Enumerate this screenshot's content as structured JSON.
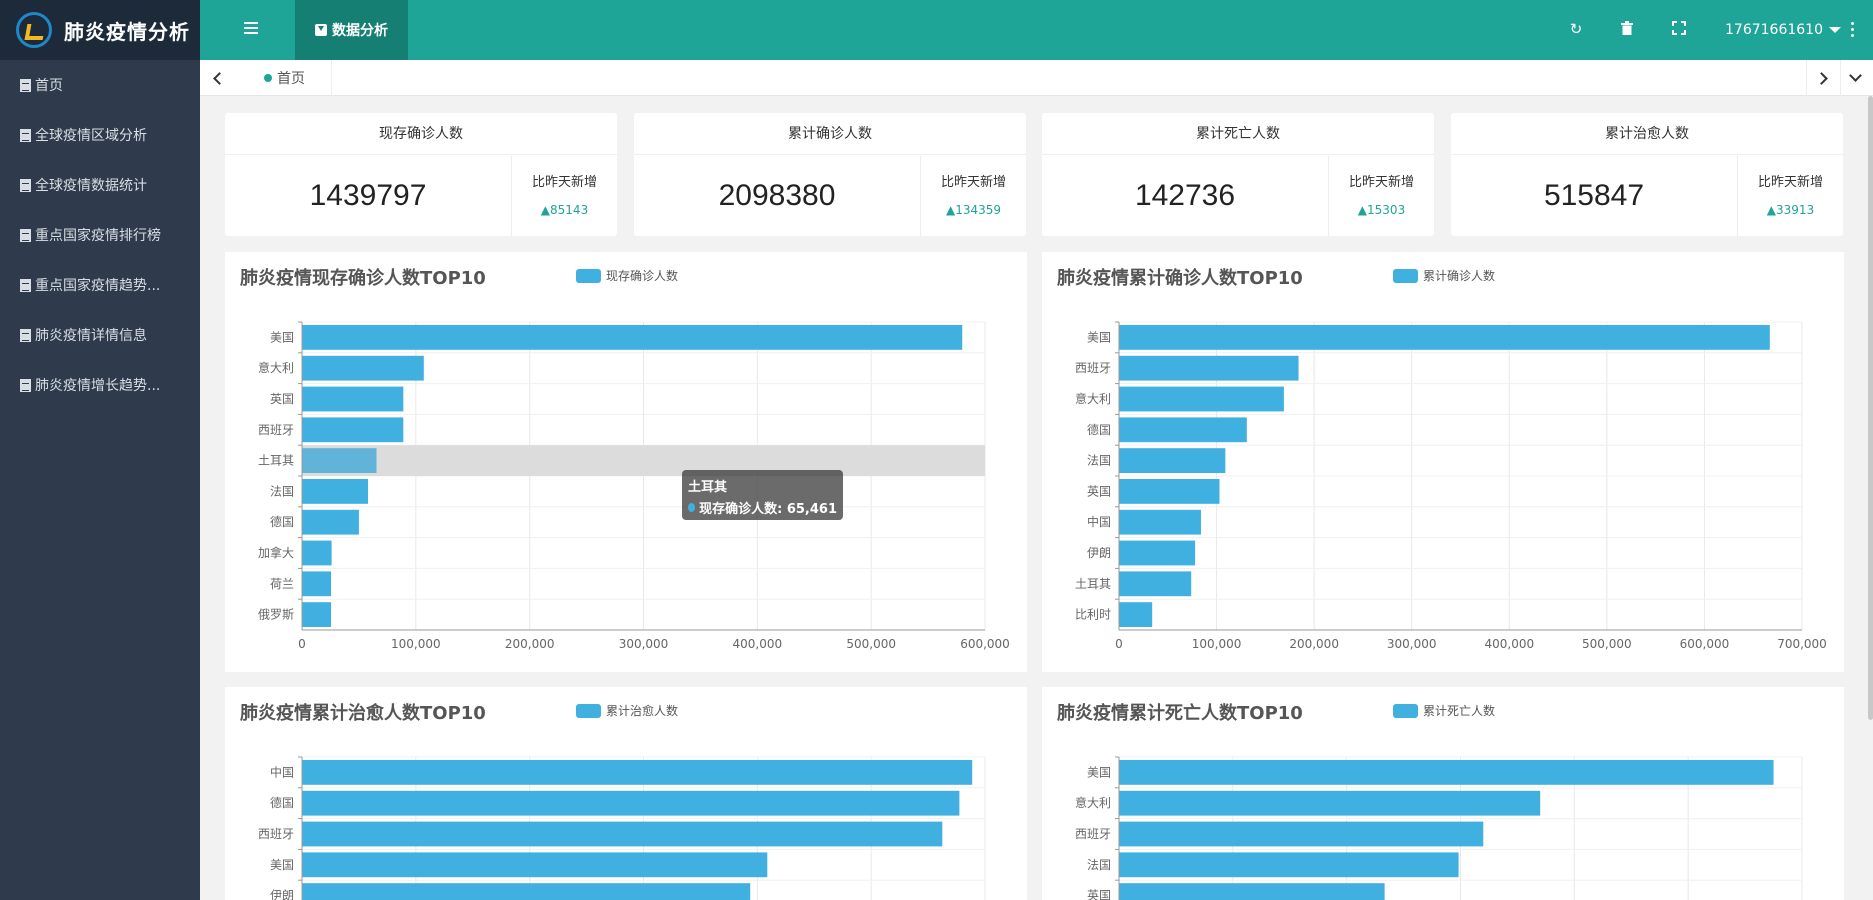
{
  "app": {
    "title": "肺炎疫情分析"
  },
  "sidebar": {
    "items": [
      {
        "label": "首页"
      },
      {
        "label": "全球疫情区域分析"
      },
      {
        "label": "全球疫情数据统计"
      },
      {
        "label": "重点国家疫情排行榜"
      },
      {
        "label": "重点国家疫情趋势..."
      },
      {
        "label": "肺炎疫情详情信息"
      },
      {
        "label": "肺炎疫情增长趋势..."
      }
    ]
  },
  "topbar": {
    "active_tab": "数据分析",
    "user": "17671661610"
  },
  "tabstrip": {
    "home_tab": "首页"
  },
  "stats": [
    {
      "title": "现存确诊人数",
      "value": "1439797",
      "compare_label": "比昨天新增",
      "delta": "▲85143"
    },
    {
      "title": "累计确诊人数",
      "value": "2098380",
      "compare_label": "比昨天新增",
      "delta": "▲134359"
    },
    {
      "title": "累计死亡人数",
      "value": "142736",
      "compare_label": "比昨天新增",
      "delta": "▲15303"
    },
    {
      "title": "累计治愈人数",
      "value": "515847",
      "compare_label": "比昨天新增",
      "delta": "▲33913"
    }
  ],
  "colors": {
    "bar": "#40b0e0",
    "accent": "#1fa597",
    "sidebar": "#2f3b4c"
  },
  "chart_data": [
    {
      "type": "bar",
      "orientation": "horizontal",
      "title": "肺炎疫情现存确诊人数TOP10",
      "series": [
        {
          "name": "现存确诊人数"
        }
      ],
      "categories": [
        "美国",
        "意大利",
        "英国",
        "西班牙",
        "土耳其",
        "法国",
        "德国",
        "加拿大",
        "荷兰",
        "俄罗斯"
      ],
      "values": [
        580000,
        107000,
        89000,
        89000,
        65461,
        58000,
        50000,
        26000,
        25500,
        25500
      ],
      "xlim": [
        0,
        600000
      ],
      "ticks": [
        "0",
        "100,000",
        "200,000",
        "300,000",
        "400,000",
        "500,000",
        "600,000"
      ],
      "tooltip": {
        "category": "土耳其",
        "text": "现存确诊人数: 65,461"
      },
      "highlight_index": 4
    },
    {
      "type": "bar",
      "orientation": "horizontal",
      "title": "肺炎疫情累计确诊人数TOP10",
      "series": [
        {
          "name": "累计确诊人数"
        }
      ],
      "categories": [
        "美国",
        "西班牙",
        "意大利",
        "德国",
        "法国",
        "英国",
        "中国",
        "伊朗",
        "土耳其",
        "比利时"
      ],
      "values": [
        667000,
        184000,
        169000,
        131000,
        109000,
        103000,
        84000,
        78000,
        74000,
        34000
      ],
      "xlim": [
        0,
        700000
      ],
      "ticks": [
        "0",
        "100,000",
        "200,000",
        "300,000",
        "400,000",
        "500,000",
        "600,000",
        "700,000"
      ]
    },
    {
      "type": "bar",
      "orientation": "horizontal",
      "title": "肺炎疫情累计治愈人数TOP10",
      "series": [
        {
          "name": "累计治愈人数"
        }
      ],
      "categories": [
        "中国",
        "德国",
        "西班牙",
        "美国",
        "伊朗"
      ],
      "values": [
        78500,
        77000,
        75000,
        54500,
        52500
      ],
      "xlim": [
        0,
        80000
      ],
      "ticks": []
    },
    {
      "type": "bar",
      "orientation": "horizontal",
      "title": "肺炎疫情累计死亡人数TOP10",
      "series": [
        {
          "name": "累计死亡人数"
        }
      ],
      "categories": [
        "美国",
        "意大利",
        "西班牙",
        "法国",
        "英国"
      ],
      "values": [
        34500,
        22200,
        19200,
        17900,
        14000
      ],
      "xlim": [
        0,
        36000
      ],
      "ticks": []
    }
  ]
}
